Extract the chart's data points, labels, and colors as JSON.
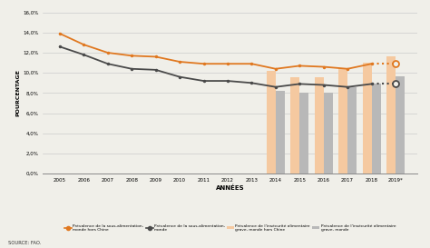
{
  "years_line": [
    2005,
    2006,
    2007,
    2008,
    2009,
    2010,
    2011,
    2012,
    2013,
    2014,
    2015,
    2016,
    2017,
    2018
  ],
  "orange_line": [
    13.9,
    12.8,
    12.0,
    11.7,
    11.6,
    11.1,
    10.9,
    10.9,
    10.9,
    10.4,
    10.7,
    10.6,
    10.4,
    10.9
  ],
  "dark_line": [
    12.6,
    11.8,
    10.9,
    10.4,
    10.3,
    9.6,
    9.2,
    9.2,
    9.0,
    8.6,
    8.9,
    8.8,
    8.6,
    8.9
  ],
  "years_bar": [
    2014,
    2015,
    2016,
    2017,
    2018,
    2019
  ],
  "bar_orange": [
    10.2,
    9.6,
    9.6,
    10.5,
    11.0,
    11.6
  ],
  "bar_gray": [
    8.2,
    8.0,
    8.0,
    8.6,
    8.9,
    9.7
  ],
  "orange_2019_projected": 10.9,
  "dark_2019_projected": 8.9,
  "color_orange_line": "#E07820",
  "color_dark_line": "#4A4A4A",
  "color_bar_orange": "#F5C9A0",
  "color_bar_gray": "#B8B8B8",
  "ylim": [
    0,
    16
  ],
  "yticks": [
    0,
    2,
    4,
    6,
    8,
    10,
    12,
    14,
    16
  ],
  "ytick_labels": [
    "0,0%",
    "2,0%",
    "4,0%",
    "6,0%",
    "8,0%",
    "10,0%",
    "12,0%",
    "14,0%",
    "16,0%"
  ],
  "xlabel": "ANNÉES",
  "ylabel": "POURCENTAGE",
  "source": "SOURCE: FAO.",
  "legend1": "Prévalence de la sous-alimentation,\nmonde hors Chine",
  "legend2": "Prévalence de la sous-alimentation,\nmonde",
  "legend3": "Prévalence de l'insécurité alimentaire\ngrave, monde hors Chine",
  "legend4": "Prévalence de l'insécurité alimentaire\ngrave, monde",
  "bar_width": 0.38,
  "background": "#F0EFE9"
}
